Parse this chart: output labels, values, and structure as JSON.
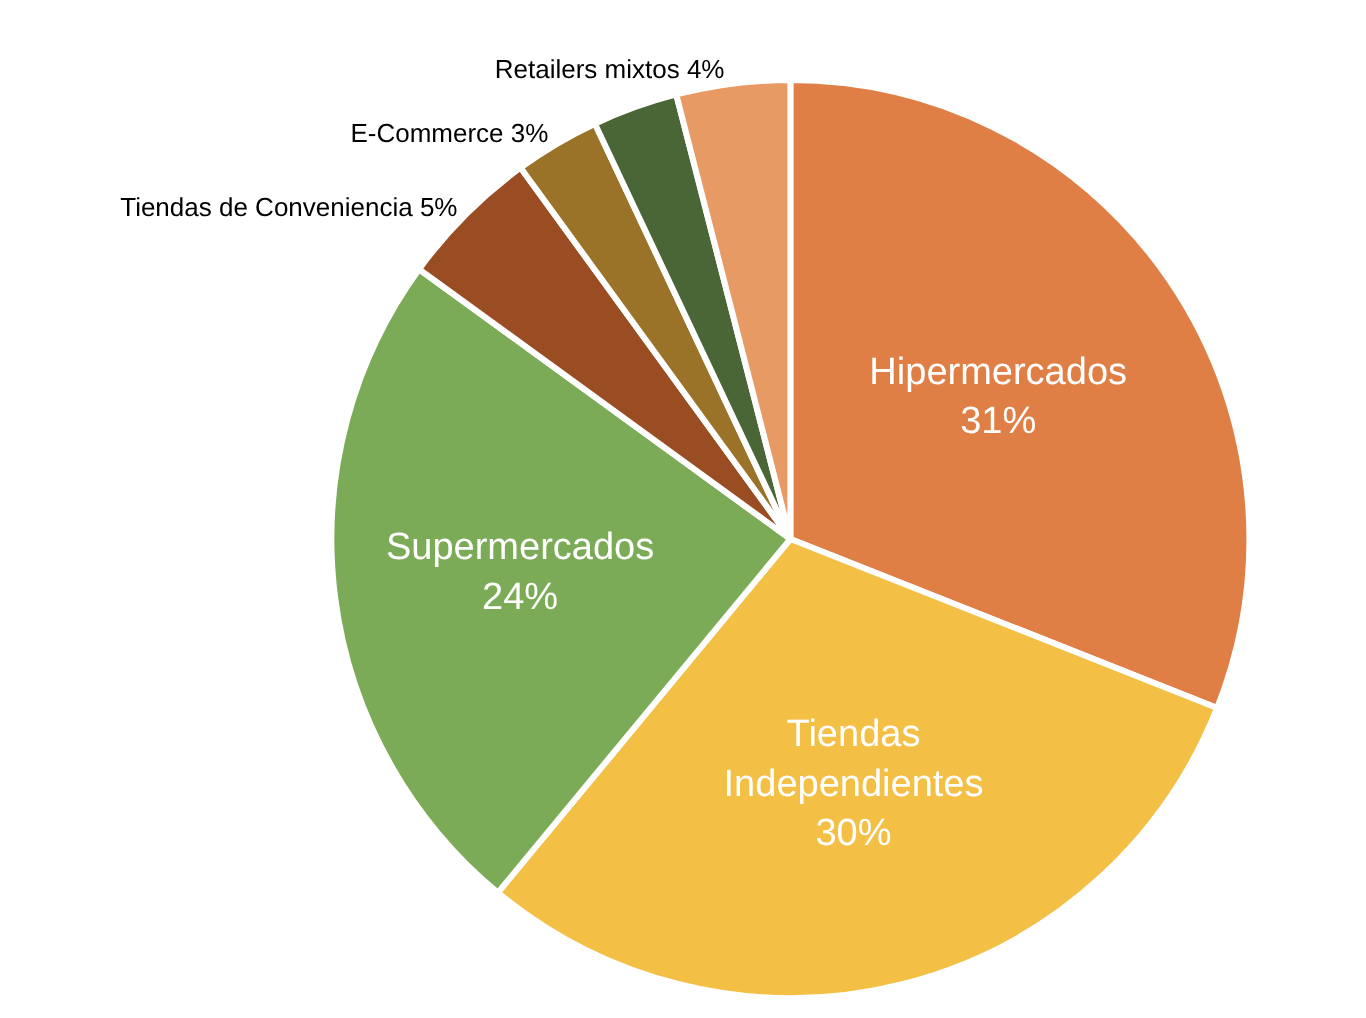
{
  "chart_data": {
    "type": "pie",
    "categories": [
      "Hipermercados",
      "Tiendas Independientes",
      "Supermercados",
      "Tiendas de Conveniencia",
      "E-Commerce",
      null,
      "Retailers mixtos"
    ],
    "values": [
      31,
      30,
      24,
      5,
      3,
      3,
      4
    ],
    "value_labels": [
      "31%",
      "30%",
      "24%",
      "5%",
      "3%",
      null,
      "4%"
    ],
    "colors": [
      "#e07f45",
      "#f4bf45",
      "#7cab57",
      "#9a4c23",
      "#9a7328",
      "#4a6636",
      "#e89a64"
    ],
    "legend": false
  }
}
